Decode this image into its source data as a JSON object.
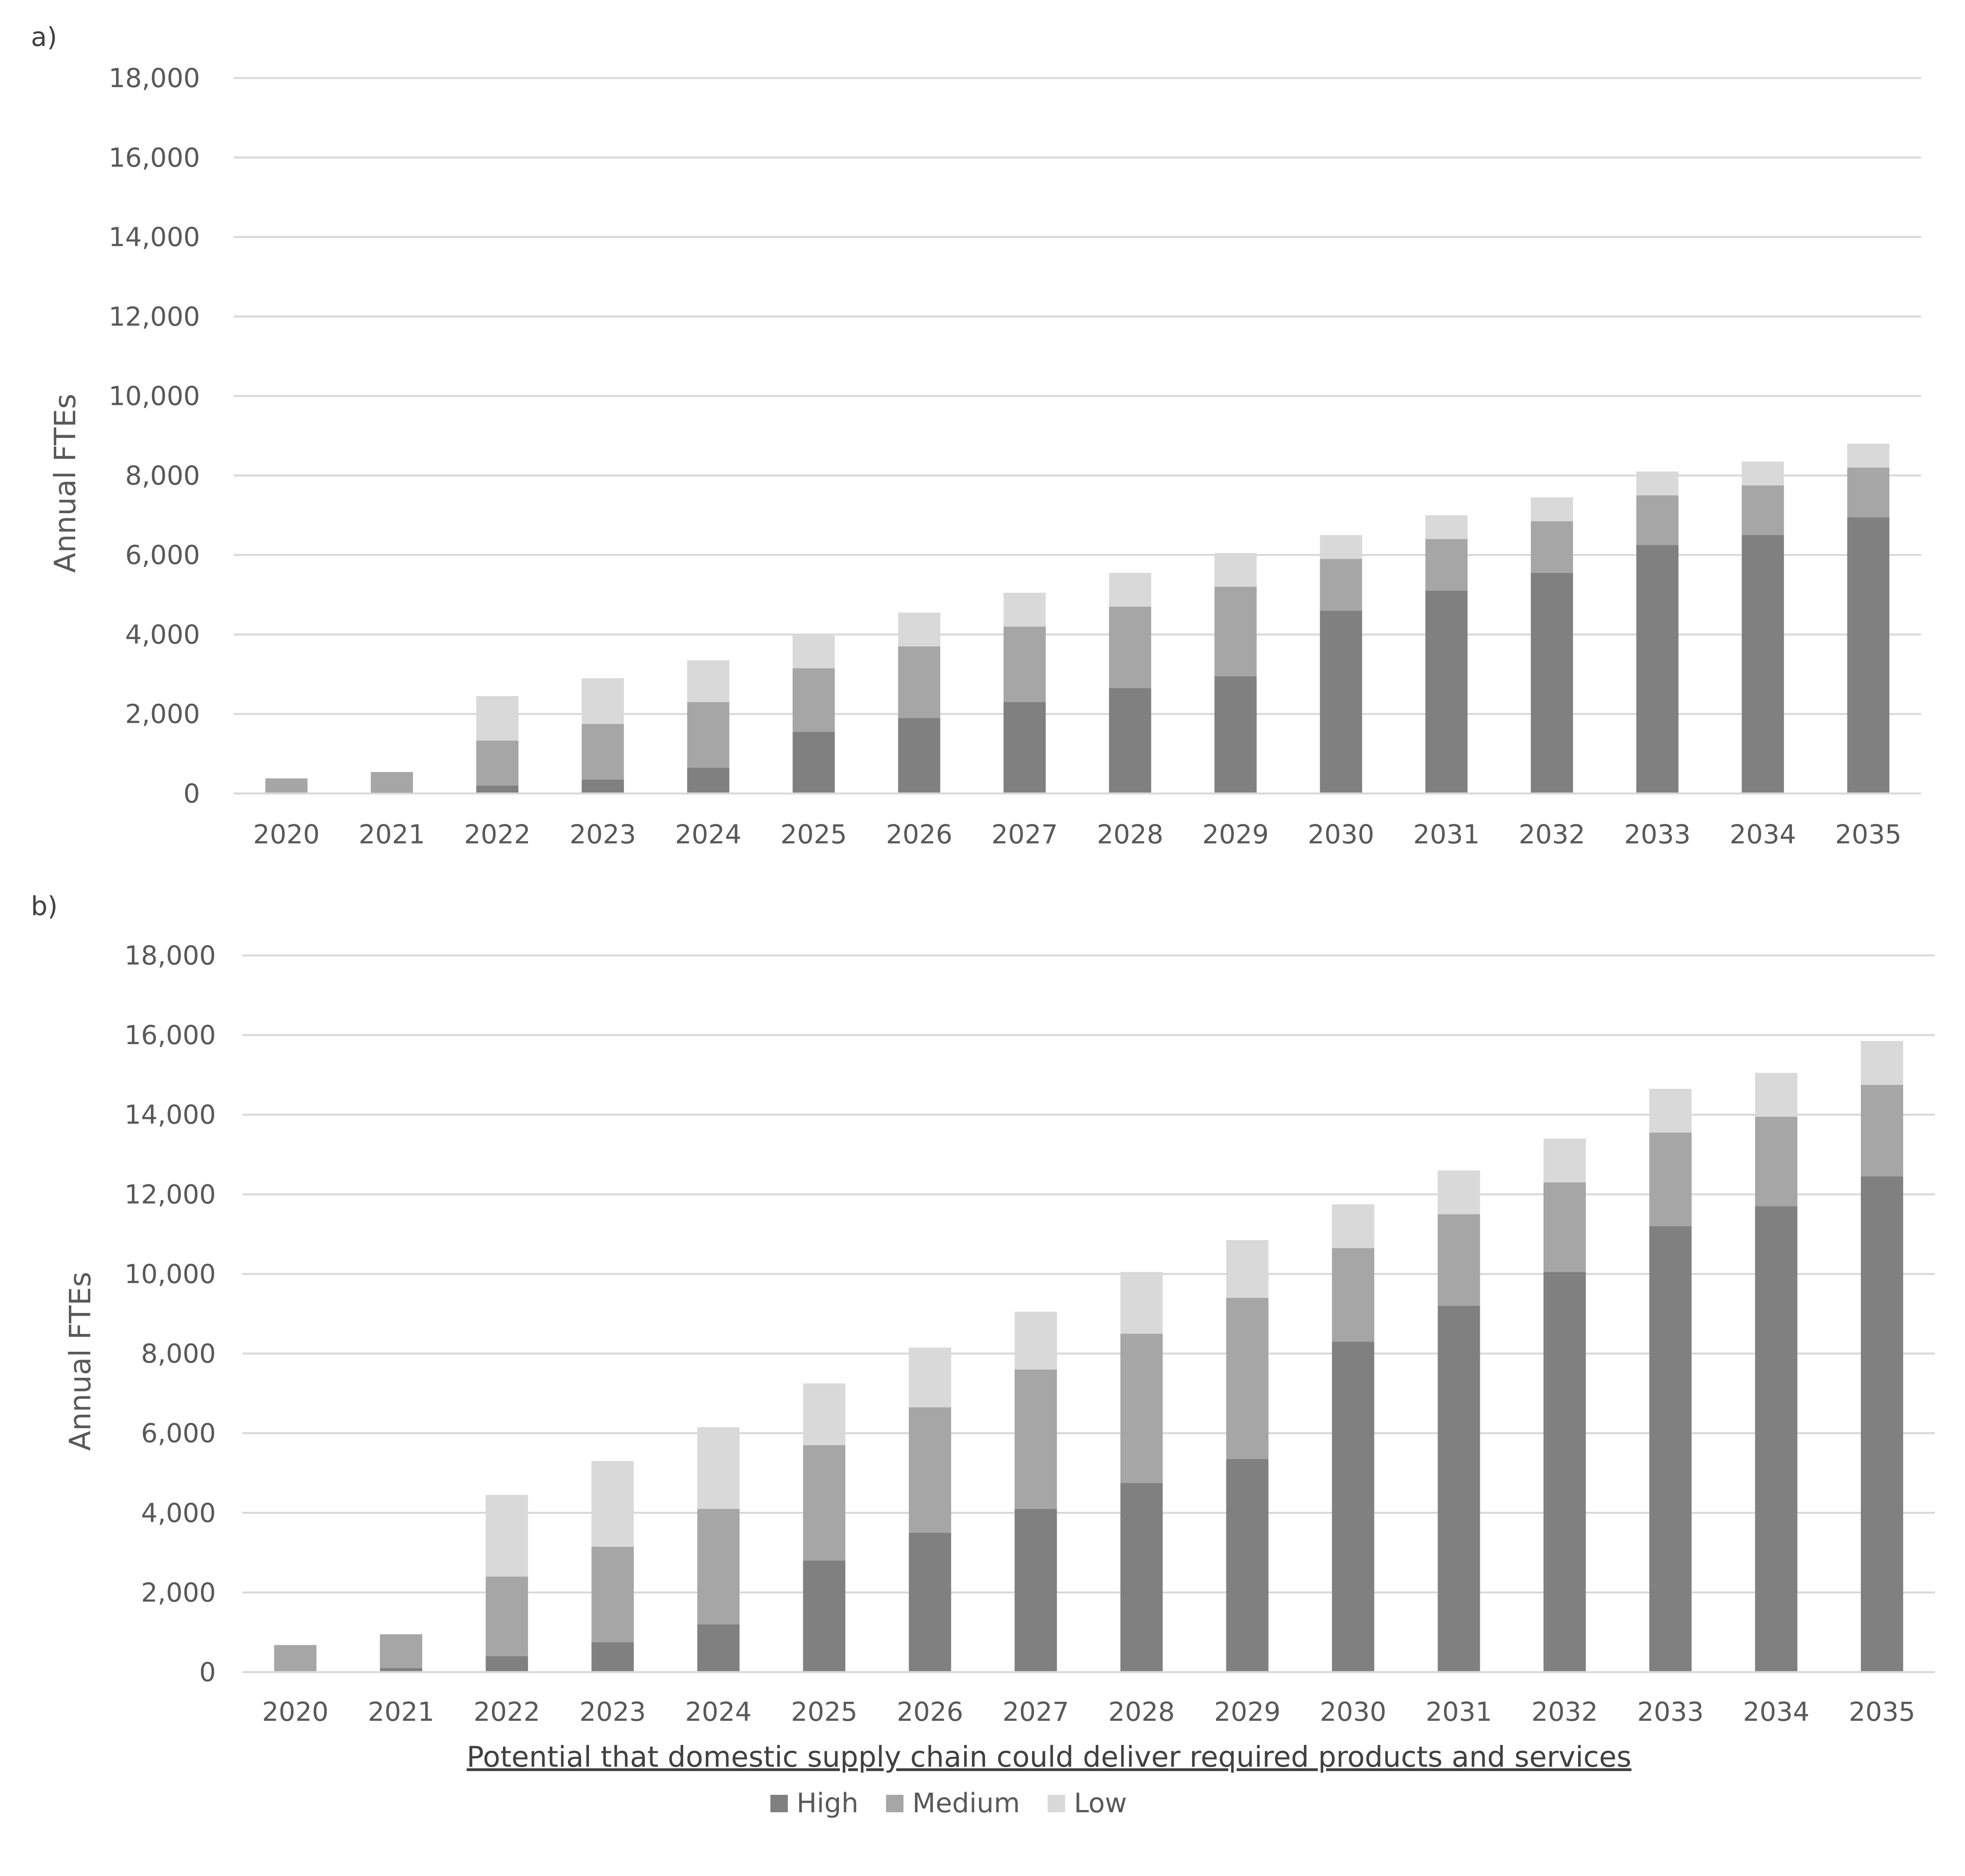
{
  "colors": {
    "High": "#808080",
    "Medium": "#a6a6a6",
    "Low": "#d9d9d9",
    "grid": "#d9d9d9"
  },
  "panels": [
    {
      "label": "a)"
    },
    {
      "label": "b)"
    }
  ],
  "chart_data": [
    {
      "type": "bar",
      "stacked": true,
      "ylabel": "Annual FTEs",
      "ylim": [
        0,
        18000
      ],
      "yticks": [
        0,
        2000,
        4000,
        6000,
        8000,
        10000,
        12000,
        14000,
        16000,
        18000
      ],
      "ytick_labels": [
        "0",
        "2,000",
        "4,000",
        "6,000",
        "8,000",
        "10,000",
        "12,000",
        "14,000",
        "16,000",
        "18,000"
      ],
      "grid": true,
      "categories": [
        "2020",
        "2021",
        "2022",
        "2023",
        "2024",
        "2025",
        "2026",
        "2027",
        "2028",
        "2029",
        "2030",
        "2031",
        "2032",
        "2033",
        "2034",
        "2035"
      ],
      "series": [
        {
          "name": "High",
          "values": [
            0,
            30,
            200,
            350,
            650,
            1550,
            1900,
            2300,
            2650,
            2950,
            4600,
            5100,
            5550,
            6250,
            6500,
            6950
          ]
        },
        {
          "name": "Medium",
          "values": [
            380,
            510,
            1130,
            1400,
            1650,
            1600,
            1800,
            1900,
            2050,
            2250,
            1300,
            1300,
            1300,
            1250,
            1250,
            1250
          ]
        },
        {
          "name": "Low",
          "values": [
            0,
            0,
            1120,
            1150,
            1050,
            850,
            850,
            850,
            850,
            850,
            600,
            600,
            600,
            600,
            600,
            600
          ]
        }
      ]
    },
    {
      "type": "bar",
      "stacked": true,
      "ylabel": "Annual FTEs",
      "ylim": [
        0,
        18000
      ],
      "yticks": [
        0,
        2000,
        4000,
        6000,
        8000,
        10000,
        12000,
        14000,
        16000,
        18000
      ],
      "ytick_labels": [
        "0",
        "2,000",
        "4,000",
        "6,000",
        "8,000",
        "10,000",
        "12,000",
        "14,000",
        "16,000",
        "18,000"
      ],
      "grid": true,
      "categories": [
        "2020",
        "2021",
        "2022",
        "2023",
        "2024",
        "2025",
        "2026",
        "2027",
        "2028",
        "2029",
        "2030",
        "2031",
        "2032",
        "2033",
        "2034",
        "2035"
      ],
      "series": [
        {
          "name": "High",
          "values": [
            0,
            100,
            400,
            750,
            1200,
            2800,
            3500,
            4100,
            4750,
            5350,
            8300,
            9200,
            10050,
            11200,
            11700,
            12450
          ]
        },
        {
          "name": "Medium",
          "values": [
            680,
            850,
            2000,
            2400,
            2900,
            2900,
            3150,
            3500,
            3750,
            4050,
            2350,
            2300,
            2250,
            2350,
            2250,
            2300
          ]
        },
        {
          "name": "Low",
          "values": [
            0,
            0,
            2050,
            2150,
            2050,
            1550,
            1500,
            1450,
            1550,
            1450,
            1100,
            1100,
            1100,
            1100,
            1100,
            1100
          ]
        }
      ]
    }
  ],
  "legend": {
    "title": "Potential that domestic supply chain could deliver required products and services",
    "items": [
      {
        "name": "High",
        "label": "High"
      },
      {
        "name": "Medium",
        "label": "Medium"
      },
      {
        "name": "Low",
        "label": "Low"
      }
    ]
  }
}
